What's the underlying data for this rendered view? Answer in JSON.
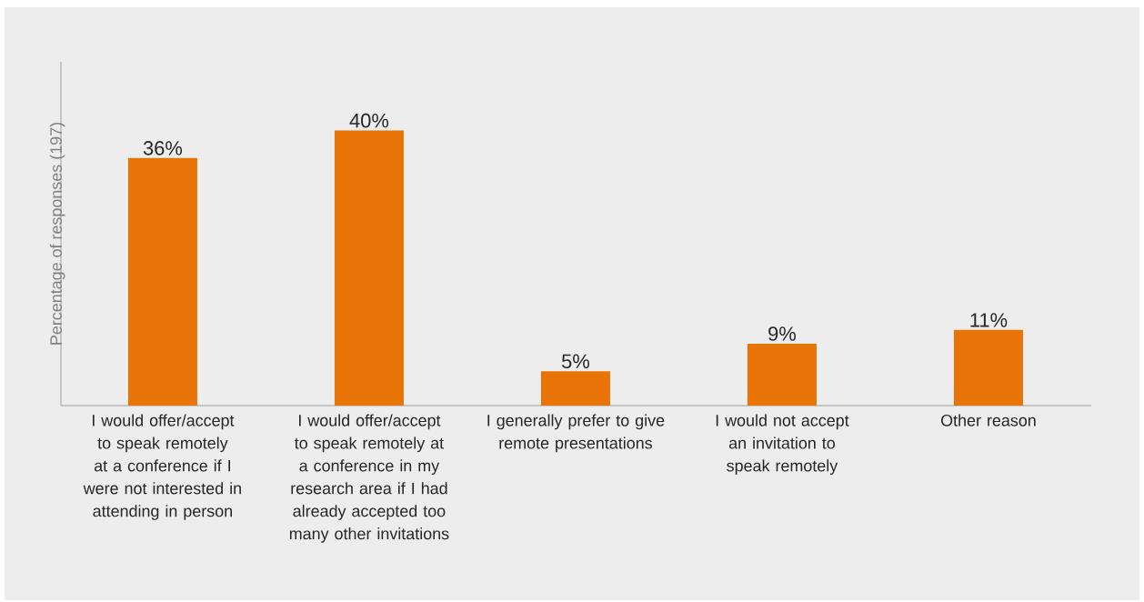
{
  "chart_data": {
    "type": "bar",
    "ylabel": "Percentage of responses (197)",
    "categories": [
      "I would offer/accept to speak remotely at a conference if I were not interested in attending in person",
      "I would offer/accept to speak remotely at a conference in my research area if I had already accepted too many other invitations",
      "I generally prefer to give remote presentations",
      "I would not accept an invitation to speak remotely",
      "Other reason"
    ],
    "values": [
      36,
      40,
      5,
      9,
      11
    ],
    "value_labels": [
      "36%",
      "40%",
      "5%",
      "9%",
      "11%"
    ],
    "color": "#e87306",
    "ylim": [
      0,
      50
    ]
  }
}
